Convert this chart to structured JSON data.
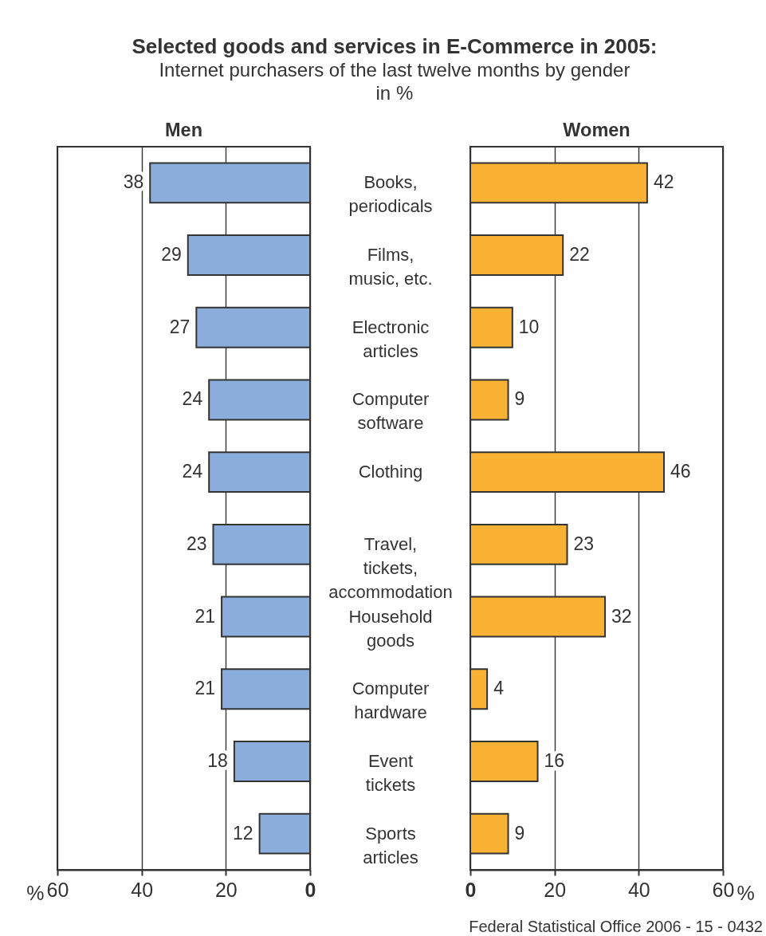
{
  "chart_data": [
    {
      "type": "bar",
      "orientation": "horizontal",
      "title": "Selected goods and services in E-Commerce in 2005:",
      "subtitle": "Internet purchasers of the last twelve months by gender in %",
      "xlabel": "%",
      "categories": [
        "Books, periodicals",
        "Films, music, etc.",
        "Electronic articles",
        "Computer software",
        "Clothing",
        "Travel, tickets, accommodation",
        "Household goods",
        "Computer hardware",
        "Event tickets",
        "Sports articles"
      ],
      "series": [
        {
          "name": "Men",
          "color": "#8aaddb",
          "values": [
            38,
            29,
            27,
            24,
            24,
            23,
            21,
            21,
            18,
            12
          ]
        }
      ],
      "xlim": [
        60,
        0
      ],
      "xticks": [
        60,
        40,
        20,
        0
      ],
      "grid": "x",
      "data_labels": true
    },
    {
      "type": "bar",
      "orientation": "horizontal",
      "xlabel": "%",
      "categories": [
        "Books, periodicals",
        "Films, music, etc.",
        "Electronic articles",
        "Computer software",
        "Clothing",
        "Travel, tickets, accommodation",
        "Household goods",
        "Computer hardware",
        "Event tickets",
        "Sports articles"
      ],
      "series": [
        {
          "name": "Women",
          "color": "#f9b233",
          "values": [
            42,
            22,
            10,
            9,
            46,
            23,
            32,
            4,
            16,
            9
          ]
        }
      ],
      "xlim": [
        0,
        60
      ],
      "xticks": [
        0,
        20,
        40,
        60
      ],
      "grid": "x",
      "data_labels": true,
      "tick_labels": "x",
      "annotations": [
        "Federal Statistical Office 2006 - 15 - 0432"
      ]
    }
  ]
}
